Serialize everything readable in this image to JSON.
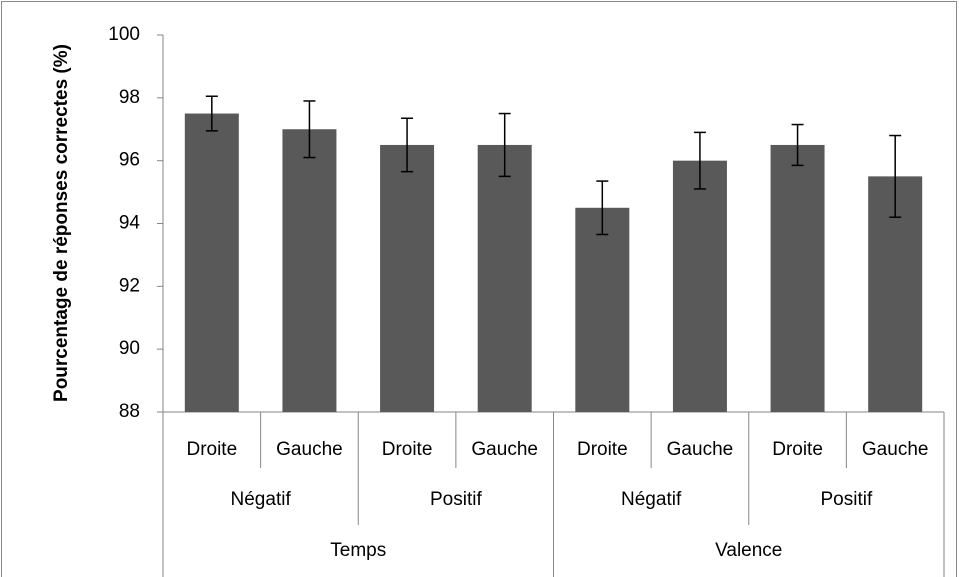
{
  "chart_data": {
    "type": "bar",
    "y_label": "Pourcentage de réponses correctes (%)",
    "categories": [
      "Droite",
      "Gauche",
      "Droite",
      "Gauche",
      "Droite",
      "Gauche",
      "Droite",
      "Gauche"
    ],
    "groups": [
      "Négatif",
      "Positif",
      "Négatif",
      "Positif"
    ],
    "supergroups": [
      "Temps",
      "Valence"
    ],
    "values": [
      97.5,
      97,
      96.5,
      96.5,
      94.5,
      96,
      96.5,
      95.5
    ],
    "errors": [
      0.55,
      0.9,
      0.85,
      1.0,
      0.85,
      0.9,
      0.65,
      1.3
    ],
    "color": "#595959",
    "ylim": [
      88,
      100
    ],
    "yticks": [
      88,
      90,
      92,
      94,
      96,
      98,
      100
    ],
    "grid": false
  }
}
